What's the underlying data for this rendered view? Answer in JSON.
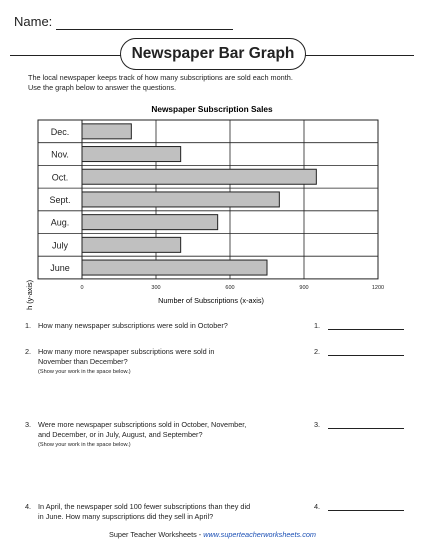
{
  "header": {
    "name_label": "Name:"
  },
  "title": "Newspaper Bar Graph",
  "intro": [
    "The local newspaper keeps track of how many subscriptions are sold each month.",
    "Use the graph below to answer the questions."
  ],
  "chart_data": {
    "type": "bar",
    "orientation": "horizontal",
    "title": "Newspaper Subscription Sales",
    "xlabel": "Number of Subscriptions (x-axis)",
    "ylabel": "Month (y-axis)",
    "categories": [
      "Dec.",
      "Nov.",
      "Oct.",
      "Sept.",
      "Aug.",
      "July",
      "June"
    ],
    "values": [
      200,
      400,
      950,
      800,
      550,
      400,
      750
    ],
    "xlim": [
      0,
      1200
    ],
    "xticks": [
      "0",
      "300",
      "600",
      "900",
      "1200"
    ],
    "bar_color": "#c0c0c0",
    "grid": true
  },
  "questions": [
    {
      "num": "1.",
      "text": [
        "How many newspaper subscriptions were sold in October?"
      ],
      "note": "",
      "answer_num": "1."
    },
    {
      "num": "2.",
      "text": [
        "How many more newspaper subscriptions were sold in",
        "November than December?"
      ],
      "note": "(Show your work in the space below.)",
      "answer_num": "2."
    },
    {
      "num": "3.",
      "text": [
        "Were more newspaper subscriptions sold in October, November,",
        "and December, or in July, August, and September?"
      ],
      "note": "(Show your work in the space below.)",
      "answer_num": "3."
    },
    {
      "num": "4.",
      "text": [
        "In April, the newspaper sold 100 fewer subscriptions than they did",
        "in June.  How many supscriptions did they sell in April?"
      ],
      "note": "",
      "answer_num": "4."
    }
  ],
  "footer": {
    "text": "Super Teacher Worksheets  - ",
    "url": "www.superteacherworksheets.com"
  }
}
